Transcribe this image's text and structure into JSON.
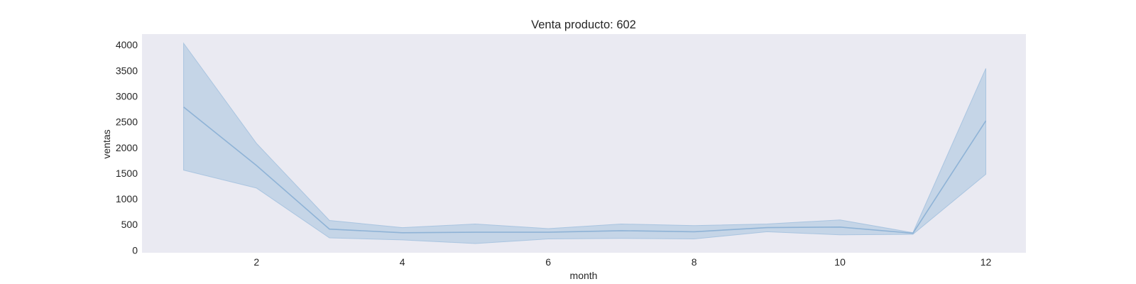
{
  "chart_data": {
    "type": "line",
    "title": "Venta producto: 602",
    "xlabel": "month",
    "ylabel": "ventas",
    "x": [
      1,
      2,
      3,
      4,
      5,
      6,
      7,
      8,
      9,
      10,
      11,
      12
    ],
    "xlim": [
      0.43,
      12.55
    ],
    "ylim": [
      -50,
      4210
    ],
    "xticks": [
      2,
      4,
      6,
      8,
      10,
      12
    ],
    "yticks": [
      0,
      500,
      1000,
      1500,
      2000,
      2500,
      3000,
      3500,
      4000
    ],
    "grid": false,
    "series": [
      {
        "values": [
          2790,
          1650,
          410,
          340,
          350,
          350,
          380,
          360,
          440,
          450,
          330,
          2520
        ],
        "lower": [
          1560,
          1210,
          240,
          200,
          130,
          220,
          230,
          220,
          360,
          300,
          310,
          1480
        ],
        "upper": [
          4030,
          2080,
          580,
          440,
          510,
          420,
          510,
          480,
          510,
          590,
          340,
          3540
        ],
        "color": "#8fb3d6",
        "band_color": "#a5c2df"
      }
    ],
    "plot_background": "#eaeaf2"
  }
}
